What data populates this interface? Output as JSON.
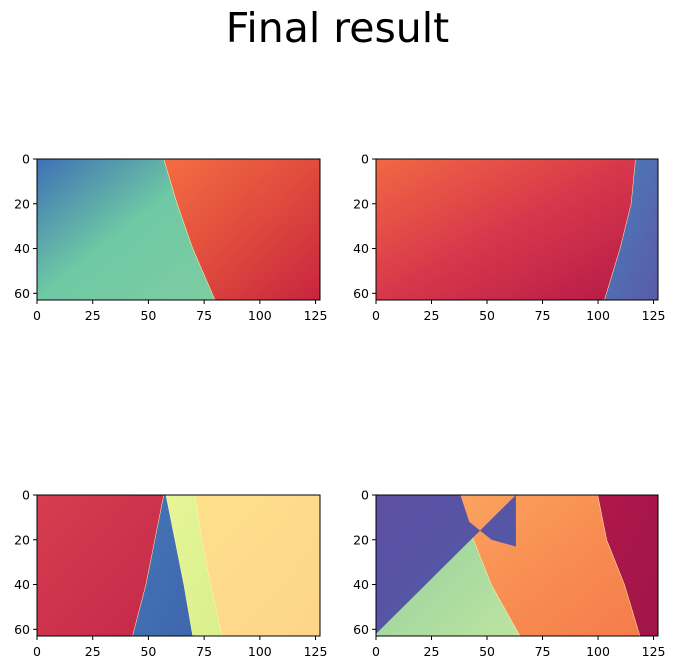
{
  "figure": {
    "title": "Final result"
  },
  "chart_data": [
    {
      "type": "heatmap",
      "title": "",
      "xlabel": "",
      "ylabel": "",
      "xlim": [
        0,
        127
      ],
      "ylim": [
        63,
        0
      ],
      "xticks": [
        "0",
        "25",
        "50",
        "75",
        "100",
        "125"
      ],
      "yticks": [
        "0",
        "20",
        "40",
        "60"
      ],
      "grid": false,
      "regions": [
        {
          "label": "left",
          "colors": [
            "#3e6fb5",
            "#6ec9a4",
            "#7fcca2"
          ],
          "boundary_x": [
            [
              0,
              57
            ],
            [
              20,
              63
            ],
            [
              40,
              70
            ],
            [
              63,
              80
            ]
          ]
        },
        {
          "label": "right",
          "colors": [
            "#f46d43",
            "#e04b3d",
            "#c8243f"
          ]
        }
      ]
    },
    {
      "type": "heatmap",
      "title": "",
      "xlabel": "",
      "ylabel": "",
      "xlim": [
        0,
        127
      ],
      "ylim": [
        63,
        0
      ],
      "xticks": [
        "0",
        "25",
        "50",
        "75",
        "100",
        "125"
      ],
      "yticks": [
        "0",
        "20",
        "40",
        "60"
      ],
      "grid": false,
      "regions": [
        {
          "label": "left",
          "colors": [
            "#f26943",
            "#d8374b",
            "#b51a48"
          ],
          "boundary_x": [
            [
              0,
              117
            ],
            [
              20,
              115
            ],
            [
              40,
              110
            ],
            [
              63,
              103
            ]
          ]
        },
        {
          "label": "right",
          "colors": [
            "#4a7fba",
            "#5a5aa8"
          ]
        }
      ]
    },
    {
      "type": "heatmap",
      "title": "",
      "xlabel": "",
      "ylabel": "",
      "xlim": [
        0,
        127
      ],
      "ylim": [
        63,
        0
      ],
      "xticks": [
        "0",
        "25",
        "50",
        "75",
        "100",
        "125"
      ],
      "yticks": [
        "0",
        "20",
        "40",
        "60"
      ],
      "grid": false,
      "regions": [
        {
          "label": "red",
          "colors": [
            "#d53e4f",
            "#c5284a"
          ],
          "boundary_x": [
            [
              0,
              57
            ],
            [
              20,
              53
            ],
            [
              40,
              49
            ],
            [
              63,
              43
            ]
          ]
        },
        {
          "label": "blue",
          "colors": [
            "#4376b6",
            "#3f66ae"
          ],
          "boundary_x": [
            [
              0,
              58
            ],
            [
              20,
              62
            ],
            [
              40,
              66
            ],
            [
              63,
              70
            ]
          ]
        },
        {
          "label": "light-green",
          "colors": [
            "#e6f598",
            "#d9ef8b"
          ],
          "boundary_x": [
            [
              0,
              71
            ],
            [
              20,
              74
            ],
            [
              40,
              78
            ],
            [
              63,
              83
            ]
          ]
        },
        {
          "label": "yellow",
          "colors": [
            "#fee08b",
            "#fdd58a"
          ]
        }
      ]
    },
    {
      "type": "heatmap",
      "title": "",
      "xlabel": "",
      "ylabel": "",
      "xlim": [
        0,
        127
      ],
      "ylim": [
        63,
        0
      ],
      "xticks": [
        "0",
        "25",
        "50",
        "75",
        "100",
        "125"
      ],
      "yticks": [
        "0",
        "20",
        "40",
        "60"
      ],
      "grid": false,
      "regions": [
        {
          "label": "green",
          "colors": [
            "#89cfa5",
            "#a6d9a0",
            "#bde4a0"
          ],
          "boundary_x": [
            [
              0,
              37
            ],
            [
              20,
              44
            ],
            [
              40,
              52
            ],
            [
              63,
              65
            ]
          ]
        },
        {
          "label": "orange",
          "colors": [
            "#fba35e",
            "#f88d52",
            "#f57c4a"
          ],
          "boundary_x": [
            [
              0,
              100
            ],
            [
              20,
              104
            ],
            [
              40,
              112
            ],
            [
              63,
              119
            ]
          ]
        },
        {
          "label": "crimson",
          "colors": [
            "#b0174a",
            "#a01548"
          ]
        },
        {
          "label": "indigo",
          "colors": [
            "#5e4fa2",
            "#4f5ba8"
          ],
          "corner_polygon": [
            [
              0,
              38
            ],
            [
              12,
              42
            ],
            [
              20,
              52
            ],
            [
              23,
              63
            ],
            [
              0,
              63
            ]
          ]
        }
      ]
    }
  ]
}
